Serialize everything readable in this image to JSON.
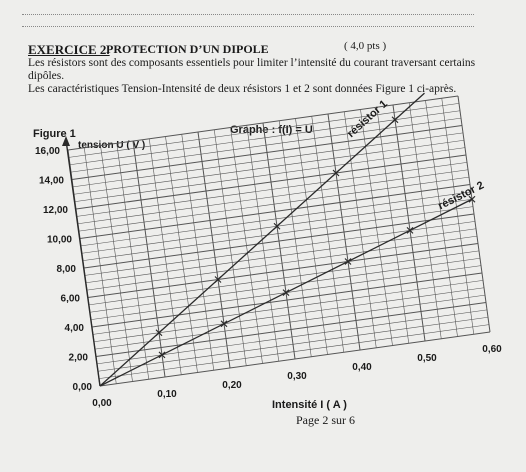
{
  "header": {
    "exercise": "EXERCICE 2.",
    "subtitle": "PROTECTION D’UN DIPOLE",
    "points": "( 4,0 pts )"
  },
  "paragraphs": {
    "line1": "Les résistors sont des composants essentiels pour limiter l’intensité du courant traversant certains",
    "line2": "dipôles.",
    "line3": "Les caractéristiques Tension-Intensité de deux résistors 1 et 2 sont données Figure 1 ci-après."
  },
  "figure": {
    "label": "Figure 1",
    "graph_title": "Graphe : f(I) = U",
    "y_axis_label": "tension U ( V )",
    "x_axis_label": "Intensité I ( A )"
  },
  "footer": {
    "page": "Page 2 sur 6"
  },
  "chart_data": {
    "type": "line",
    "title": "Graphe : f(I) = U",
    "xlabel": "Intensité I ( A )",
    "ylabel": "tension U ( V )",
    "xlim": [
      0,
      0.6
    ],
    "ylim": [
      0,
      16
    ],
    "x_ticks": [
      "0,00",
      "0,10",
      "0,20",
      "0,30",
      "0,40",
      "0,50",
      "0,60"
    ],
    "y_ticks": [
      "0,00",
      "2,00",
      "4,00",
      "6,00",
      "8,00",
      "10,00",
      "12,00",
      "14,00",
      "16,00"
    ],
    "grid": true,
    "series": [
      {
        "name": "résistor 1",
        "x": [
          0,
          0.1,
          0.2,
          0.3,
          0.4,
          0.5
        ],
        "y": [
          0,
          3,
          6,
          9,
          12,
          15
        ]
      },
      {
        "name": "résistor 2",
        "x": [
          0,
          0.1,
          0.2,
          0.3,
          0.4,
          0.5,
          0.6
        ],
        "y": [
          0,
          1.5,
          3,
          4.5,
          6,
          7.5,
          9
        ]
      }
    ],
    "colors": {
      "grid": "#555555",
      "line": "#2a2a2a"
    }
  }
}
